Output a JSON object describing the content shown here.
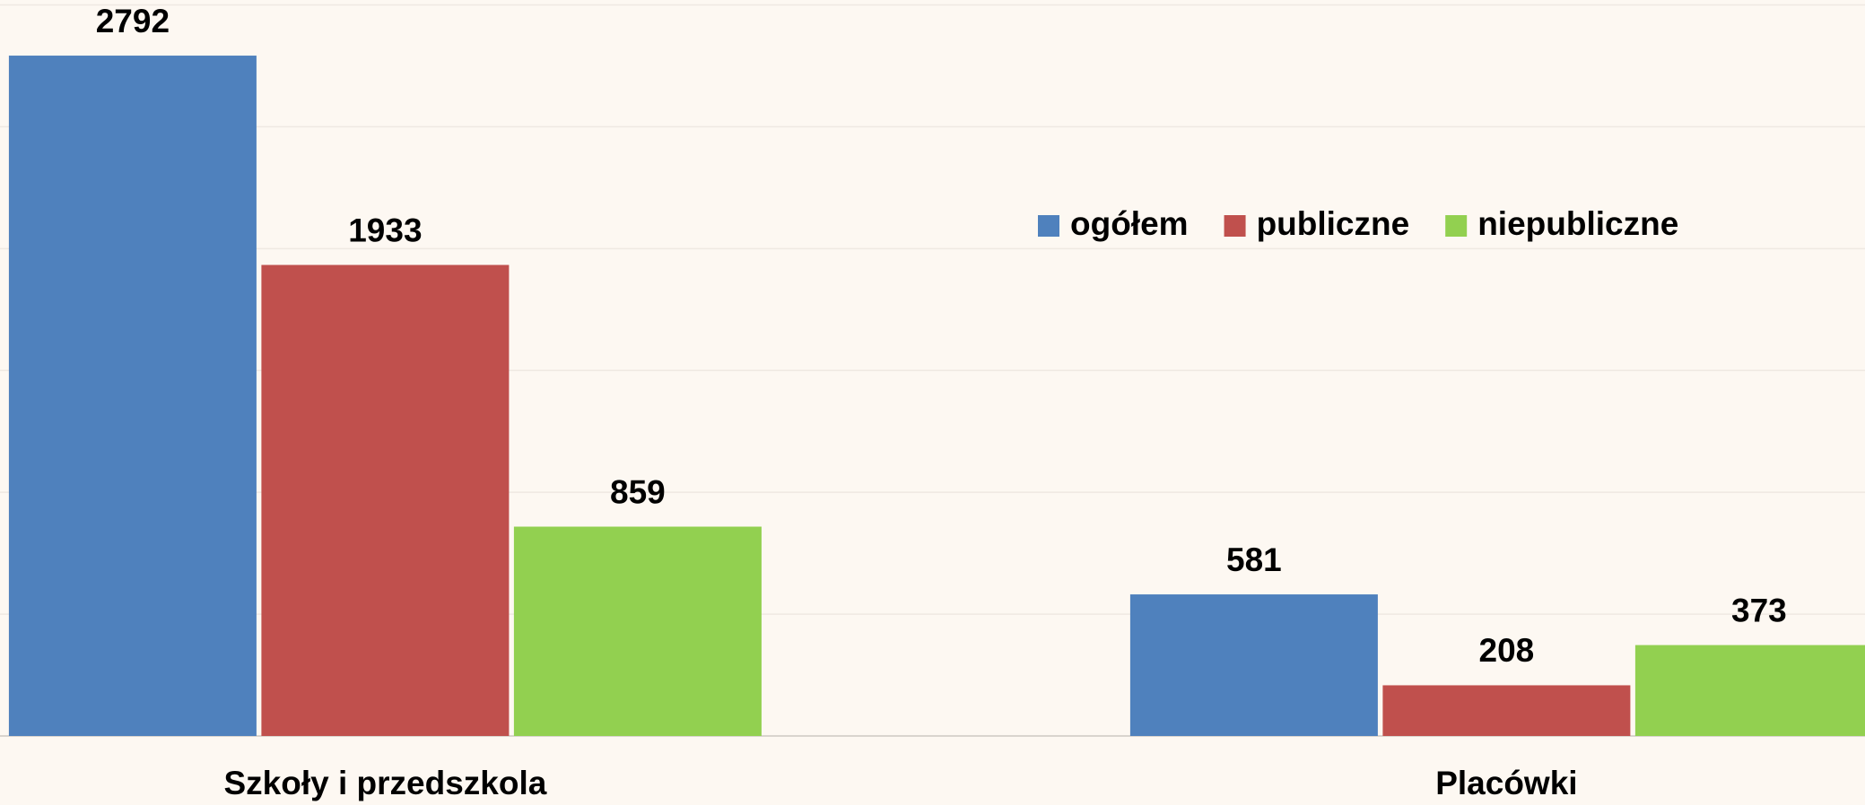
{
  "chart_data": {
    "type": "bar",
    "categories": [
      "Szkoły i przedszkola",
      "Placówki"
    ],
    "series": [
      {
        "name": "ogółem",
        "color": "#4f81bd",
        "values": [
          2792,
          581
        ]
      },
      {
        "name": "publiczne",
        "color": "#c0504d",
        "values": [
          1933,
          208
        ]
      },
      {
        "name": "niepubliczne",
        "color": "#92d050",
        "values": [
          859,
          373
        ]
      }
    ],
    "ylim": [
      0,
      3000
    ],
    "yticks": [
      0,
      500,
      1000,
      1500,
      2000,
      2500,
      3000
    ],
    "grid": true,
    "legend": "top-right"
  }
}
